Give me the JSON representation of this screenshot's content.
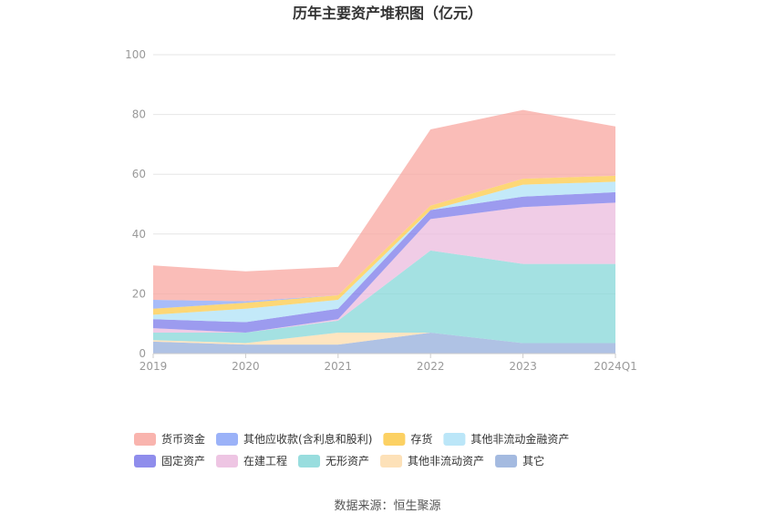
{
  "chart_data": {
    "type": "area",
    "stacked": true,
    "title": "历年主要资产堆积图（亿元）",
    "categories": [
      "2019",
      "2020",
      "2021",
      "2022",
      "2023",
      "2024Q1"
    ],
    "ylim": [
      0,
      100
    ],
    "yticks": [
      0,
      20,
      40,
      60,
      80,
      100
    ],
    "grid": true,
    "legend_position": "bottom",
    "series": [
      {
        "name": "其它",
        "color": "#94aedb",
        "values": [
          4.0,
          3.0,
          3.0,
          7.0,
          3.5,
          3.5
        ]
      },
      {
        "name": "其他非流动资产",
        "color": "#fddcab",
        "values": [
          0.5,
          0.5,
          4.0,
          0.0,
          0.0,
          0.0
        ]
      },
      {
        "name": "无形资产",
        "color": "#86d7d8",
        "values": [
          2.5,
          3.5,
          4.0,
          27.5,
          26.5,
          26.5
        ]
      },
      {
        "name": "在建工程",
        "color": "#ebbbde",
        "values": [
          1.5,
          0.0,
          0.5,
          10.5,
          19.0,
          20.5
        ]
      },
      {
        "name": "固定资产",
        "color": "#7b79e9",
        "values": [
          3.0,
          3.5,
          3.5,
          3.0,
          3.5,
          3.5
        ]
      },
      {
        "name": "其他非流动金融资产",
        "color": "#afe2f7",
        "values": [
          1.5,
          4.5,
          3.0,
          0.0,
          4.0,
          3.5
        ]
      },
      {
        "name": "存货",
        "color": "#fcc948",
        "values": [
          2.0,
          2.0,
          1.5,
          1.5,
          2.0,
          2.0
        ]
      },
      {
        "name": "其他应收款(含利息和股利)",
        "color": "#8aa5f7",
        "values": [
          3.0,
          0.5,
          0.0,
          0.0,
          0.0,
          0.0
        ]
      },
      {
        "name": "货币资金",
        "color": "#f8a7a0",
        "values": [
          11.5,
          10.0,
          9.5,
          25.5,
          23.0,
          16.5
        ]
      }
    ],
    "legend_order": [
      "货币资金",
      "其他应收款(含利息和股利)",
      "存货",
      "其他非流动金融资产",
      "固定资产",
      "在建工程",
      "无形资产",
      "其他非流动资产",
      "其它"
    ],
    "source": "数据来源：恒生聚源"
  }
}
